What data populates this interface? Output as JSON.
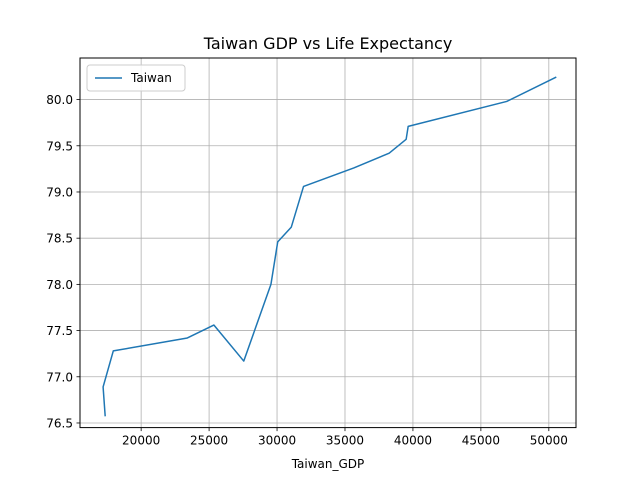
{
  "chart_data": {
    "type": "line",
    "title": "Taiwan GDP vs Life Expectancy",
    "xlabel": "Taiwan_GDP",
    "ylabel": "",
    "xlim": [
      15500,
      52000
    ],
    "ylim": [
      76.45,
      80.45
    ],
    "xticks": [
      20000,
      25000,
      30000,
      35000,
      40000,
      45000,
      50000
    ],
    "yticks": [
      76.5,
      77.0,
      77.5,
      78.0,
      78.5,
      79.0,
      79.5,
      80.0
    ],
    "xtick_labels": [
      "20000",
      "25000",
      "30000",
      "35000",
      "40000",
      "45000",
      "50000"
    ],
    "ytick_labels": [
      "76.5",
      "77.0",
      "77.5",
      "78.0",
      "78.5",
      "79.0",
      "79.5",
      "80.0"
    ],
    "grid": true,
    "legend_position": "upper-left",
    "series": [
      {
        "name": "Taiwan",
        "color": "#1f77b4",
        "x": [
          17350,
          17200,
          17950,
          23400,
          25350,
          27550,
          29550,
          30050,
          31050,
          31950,
          35650,
          38250,
          39500,
          39650,
          46900,
          50500
        ],
        "y": [
          76.58,
          76.89,
          77.28,
          77.42,
          77.56,
          77.17,
          78.0,
          78.46,
          78.62,
          79.06,
          79.26,
          79.42,
          79.57,
          79.71,
          79.98,
          80.24
        ]
      }
    ]
  }
}
